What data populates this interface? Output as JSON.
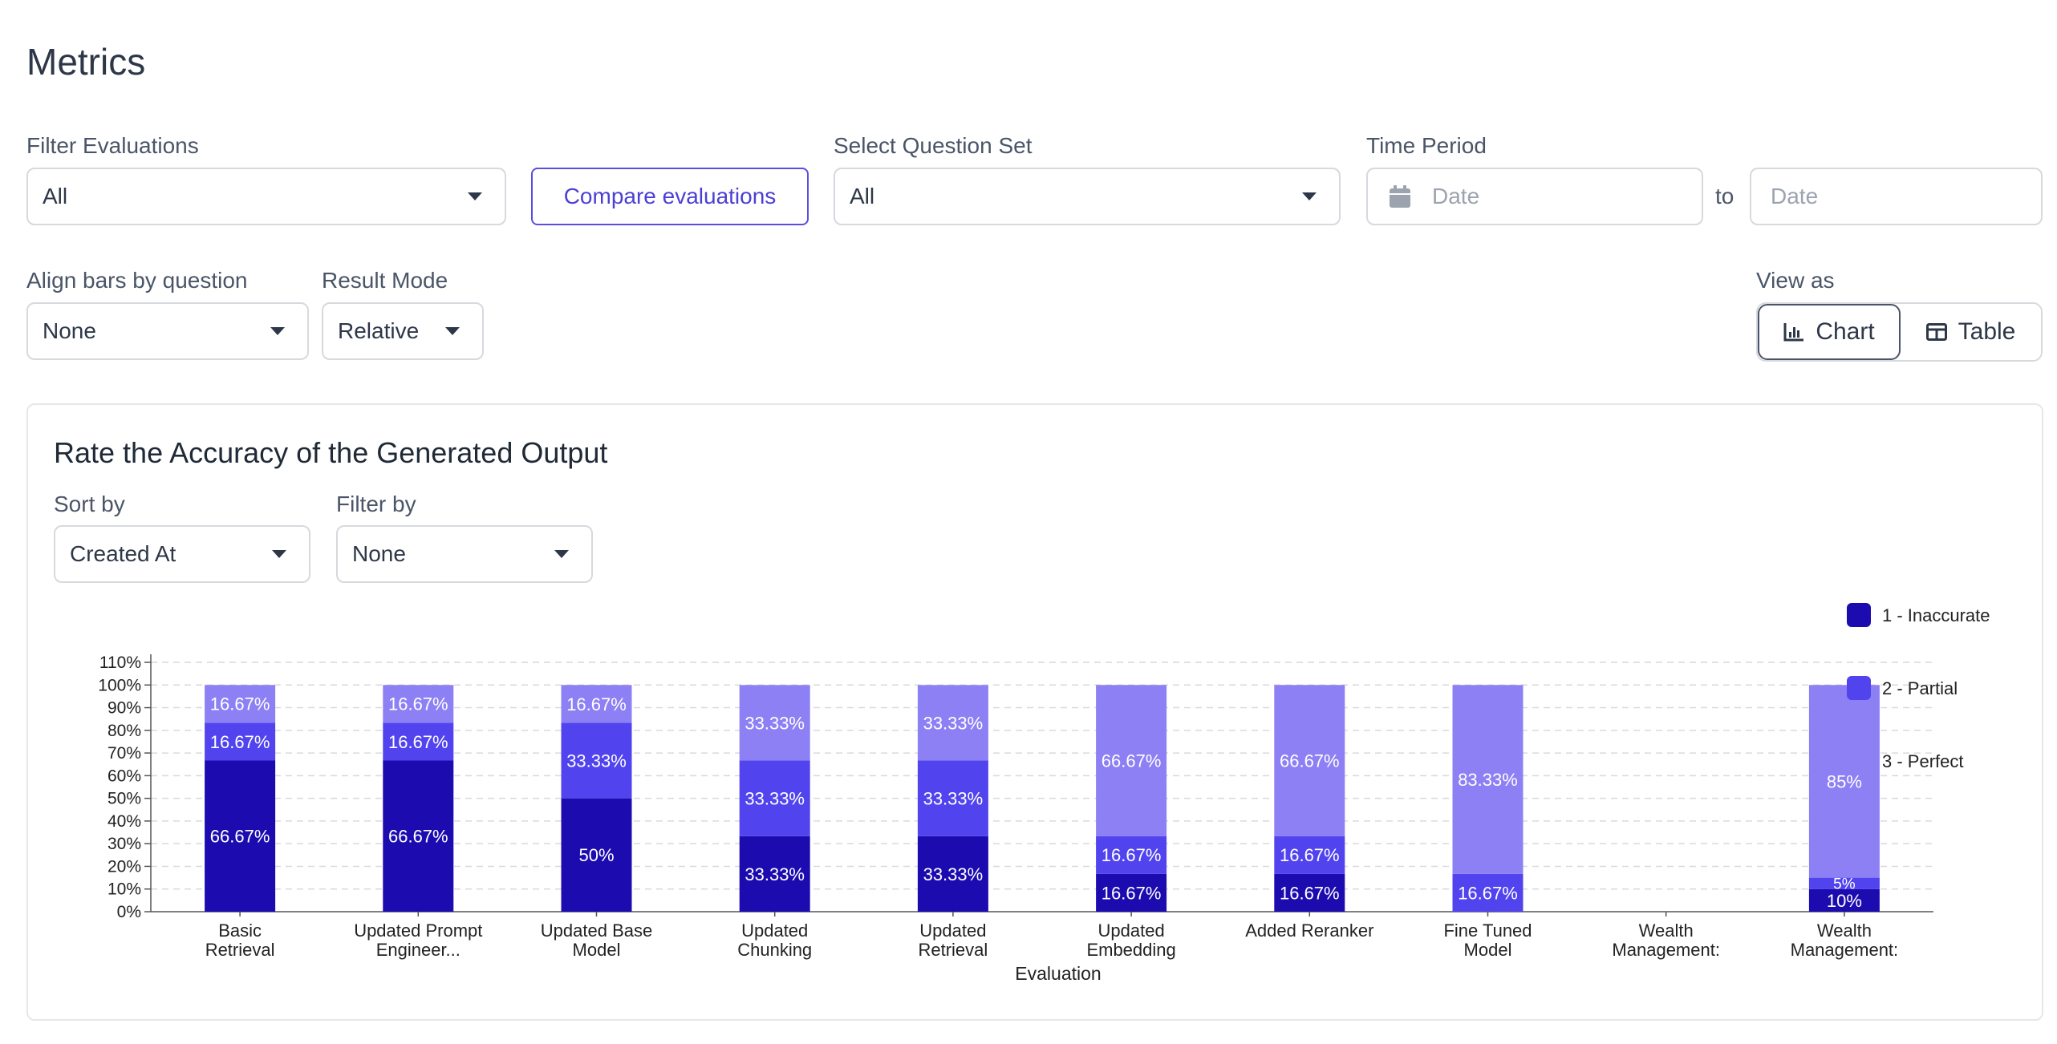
{
  "page": {
    "title": "Metrics"
  },
  "filters": {
    "filter_evaluations": {
      "label": "Filter Evaluations",
      "value": "All"
    },
    "compare_button": "Compare evaluations",
    "question_set": {
      "label": "Select Question Set",
      "value": "All"
    },
    "time_period": {
      "label": "Time Period",
      "start_placeholder": "Date",
      "end_placeholder": "Date",
      "to": "to"
    },
    "align_bars": {
      "label": "Align bars by question",
      "value": "None"
    },
    "result_mode": {
      "label": "Result Mode",
      "value": "Relative"
    },
    "view_as": {
      "label": "View as",
      "chart": "Chart",
      "table": "Table",
      "active": "Chart"
    }
  },
  "card": {
    "title": "Rate the Accuracy of the Generated Output",
    "sort_by": {
      "label": "Sort by",
      "value": "Created At"
    },
    "filter_by": {
      "label": "Filter by",
      "value": "None"
    }
  },
  "chart_data": {
    "type": "bar",
    "stacked": true,
    "xlabel": "Evaluation",
    "ylabel": "",
    "ylim": [
      0,
      110
    ],
    "yticks": [
      "0%",
      "10%",
      "20%",
      "30%",
      "40%",
      "50%",
      "60%",
      "70%",
      "80%",
      "90%",
      "100%",
      "110%"
    ],
    "grid": true,
    "legend_position": "right",
    "categories": [
      [
        "Basic",
        "Retrieval"
      ],
      [
        "Updated Prompt",
        "Engineer..."
      ],
      [
        "Updated Base",
        "Model"
      ],
      [
        "Updated",
        "Chunking"
      ],
      [
        "Updated",
        "Retrieval"
      ],
      [
        "Updated",
        "Embedding"
      ],
      [
        "Added Reranker"
      ],
      [
        "Fine Tuned",
        "Model"
      ],
      [
        "Wealth",
        "Management:"
      ],
      [
        "Wealth",
        "Management:"
      ]
    ],
    "series": [
      {
        "name": "1 - Inaccurate",
        "color": "#1c0cb0",
        "values": [
          66.67,
          66.67,
          50,
          33.33,
          33.33,
          16.67,
          16.67,
          0,
          0,
          10
        ],
        "labels": [
          "66.67%",
          "66.67%",
          "50%",
          "33.33%",
          "33.33%",
          "16.67%",
          "16.67%",
          "",
          "",
          "10%"
        ]
      },
      {
        "name": "2 - Partial",
        "color": "#5144ee",
        "values": [
          16.67,
          16.67,
          33.33,
          33.33,
          33.33,
          16.67,
          16.67,
          16.67,
          0,
          5
        ],
        "labels": [
          "16.67%",
          "16.67%",
          "33.33%",
          "33.33%",
          "33.33%",
          "16.67%",
          "16.67%",
          "16.67%",
          "",
          "5%"
        ]
      },
      {
        "name": "3 - Perfect",
        "color": "#8d80f4",
        "values": [
          16.67,
          16.67,
          16.67,
          33.33,
          33.33,
          66.67,
          66.67,
          83.33,
          0,
          85
        ],
        "labels": [
          "16.67%",
          "16.67%",
          "16.67%",
          "33.33%",
          "33.33%",
          "66.67%",
          "66.67%",
          "83.33%",
          "",
          "85%"
        ]
      }
    ]
  }
}
